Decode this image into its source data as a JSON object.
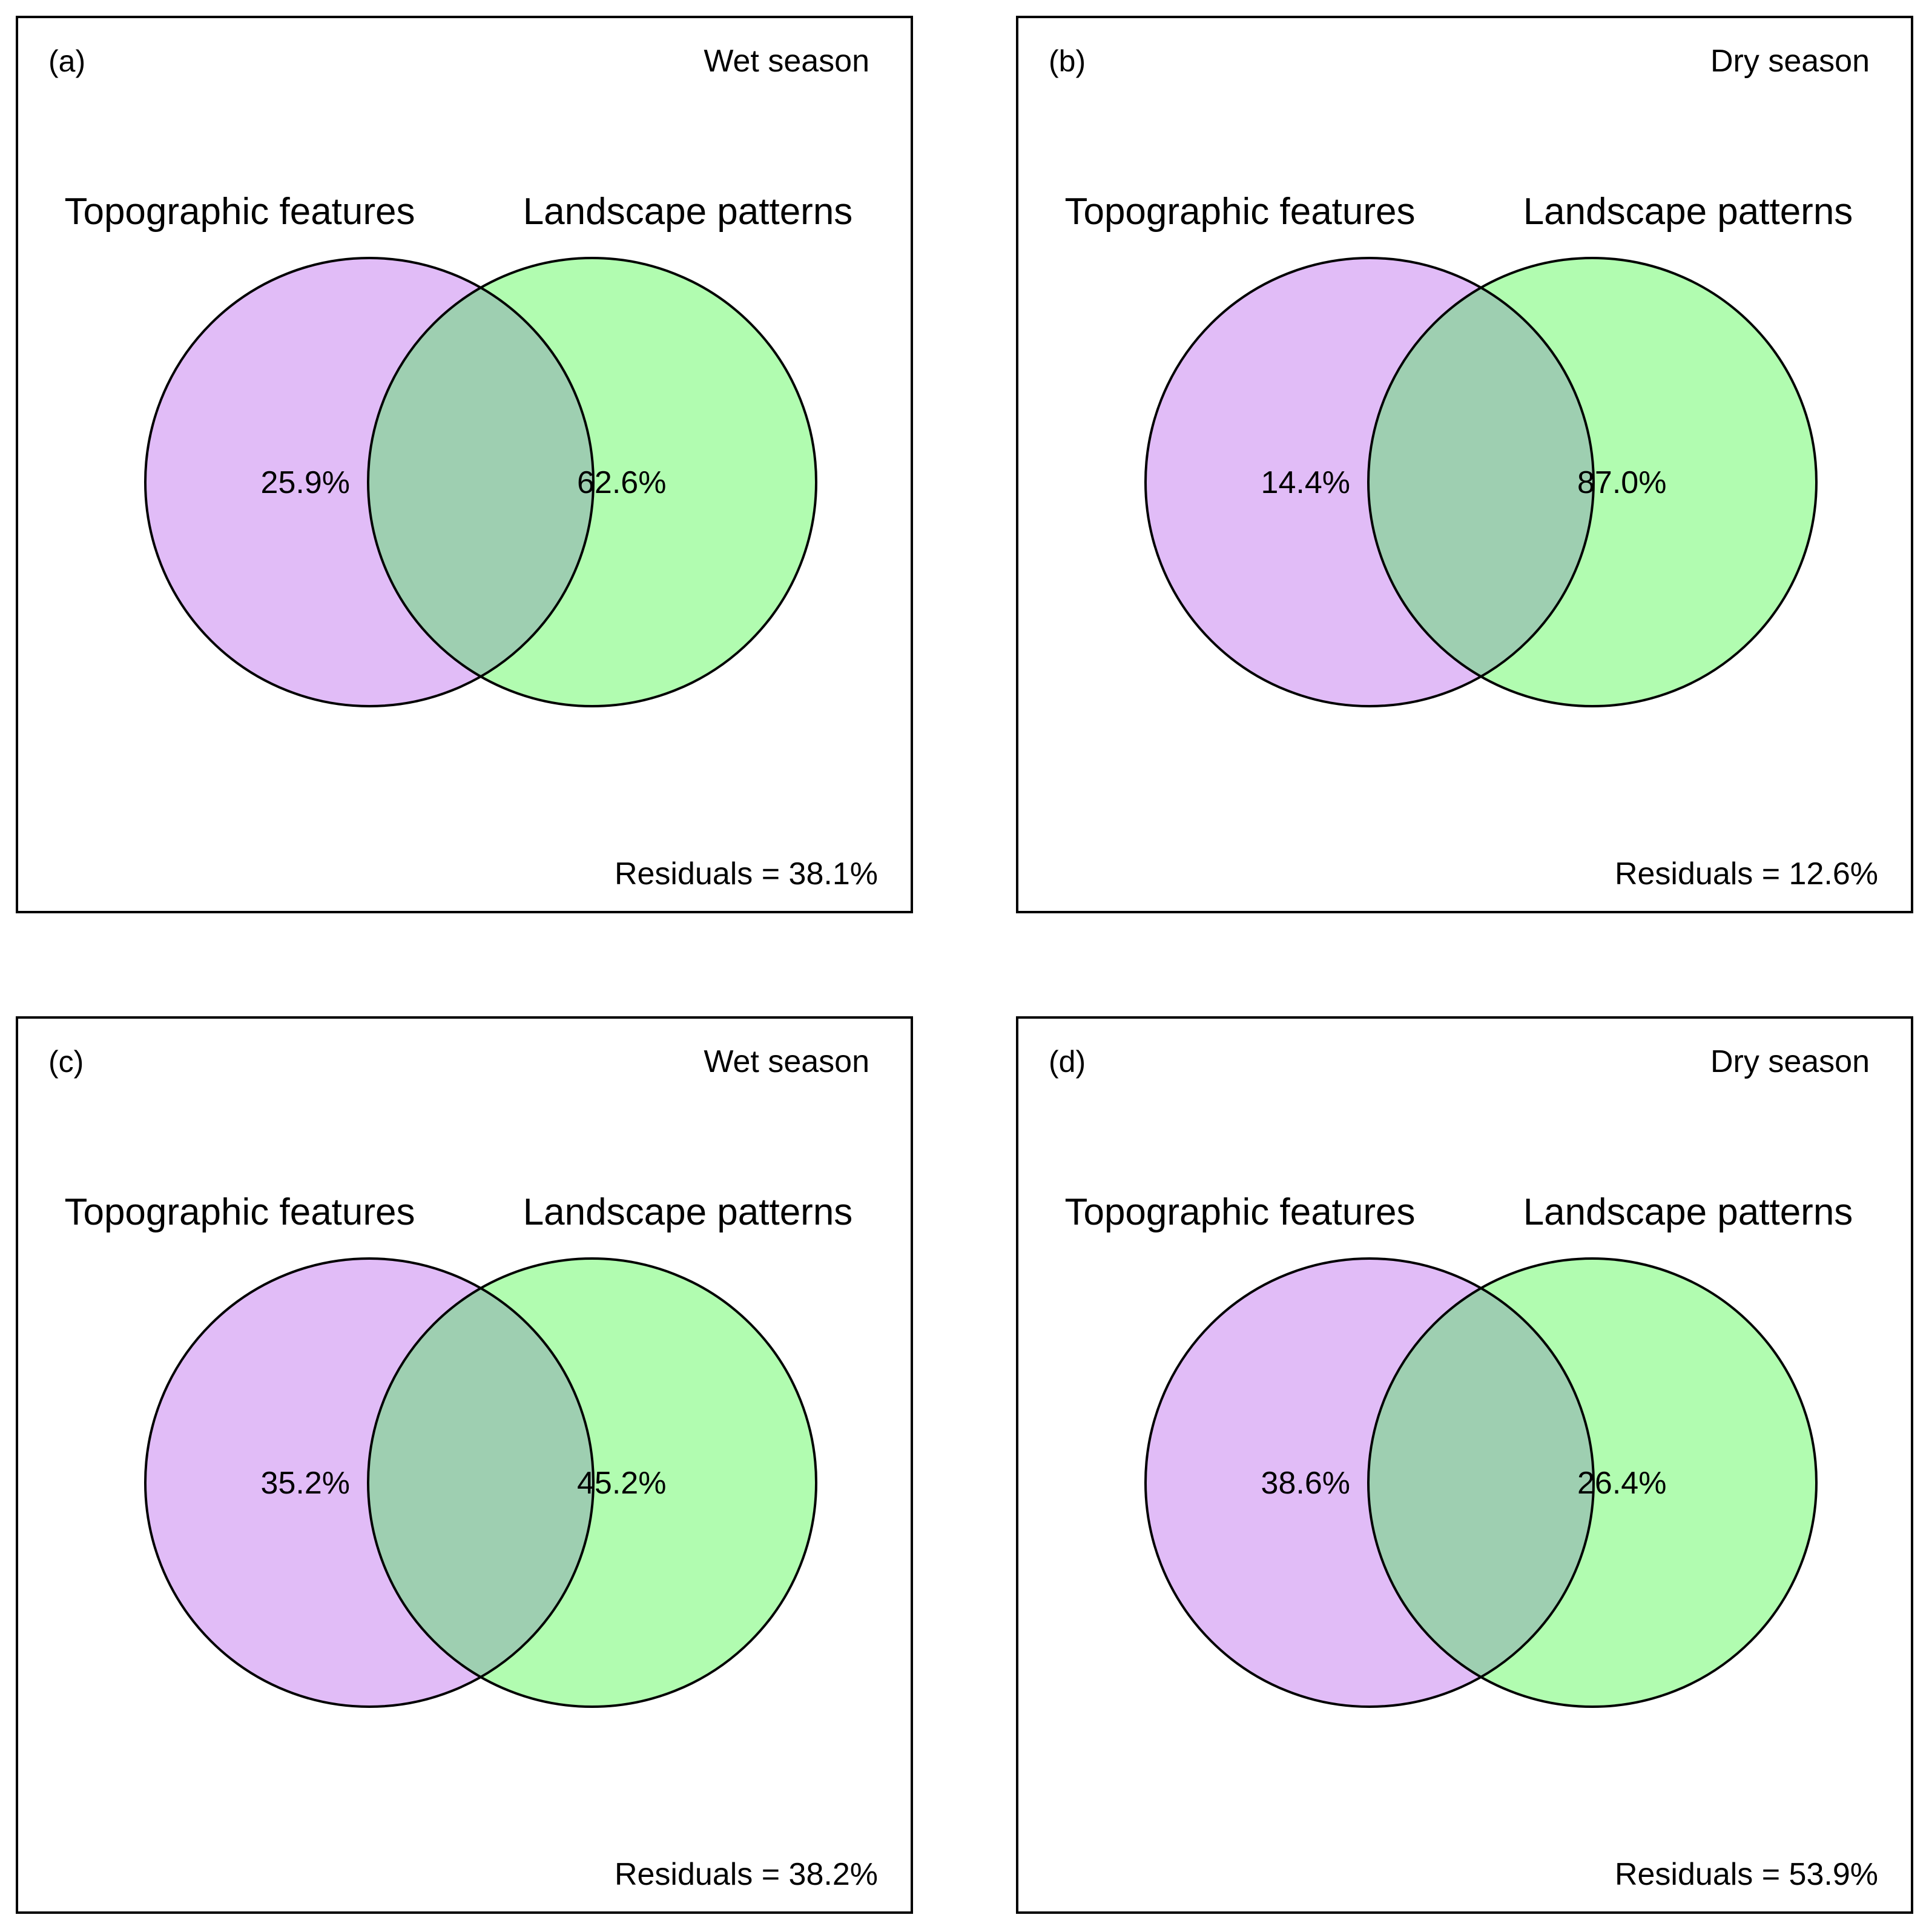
{
  "colors": {
    "topographic_fill": "#e1bcf7",
    "landscape_fill": "#b1fcb0",
    "overlap_fill": "#9ecfb1",
    "outline": "#000000",
    "background": "#ffffff"
  },
  "panels": [
    {
      "label": "(a)",
      "season": "Wet season",
      "left_circle_label": "Topographic features",
      "right_circle_label": "Landscape patterns",
      "left_value": "25.9%",
      "right_value": "62.6%",
      "residuals": "Residuals = 38.1%"
    },
    {
      "label": "(b)",
      "season": "Dry season",
      "left_circle_label": "Topographic features",
      "right_circle_label": "Landscape patterns",
      "left_value": "14.4%",
      "right_value": "87.0%",
      "residuals": "Residuals = 12.6%"
    },
    {
      "label": "(c)",
      "season": "Wet season",
      "left_circle_label": "Topographic features",
      "right_circle_label": "Landscape patterns",
      "left_value": "35.2%",
      "right_value": "45.2%",
      "residuals": "Residuals = 38.2%"
    },
    {
      "label": "(d)",
      "season": "Dry season",
      "left_circle_label": "Topographic features",
      "right_circle_label": "Landscape patterns",
      "left_value": "38.6%",
      "right_value": "26.4%",
      "residuals": "Residuals = 53.9%"
    }
  ]
}
